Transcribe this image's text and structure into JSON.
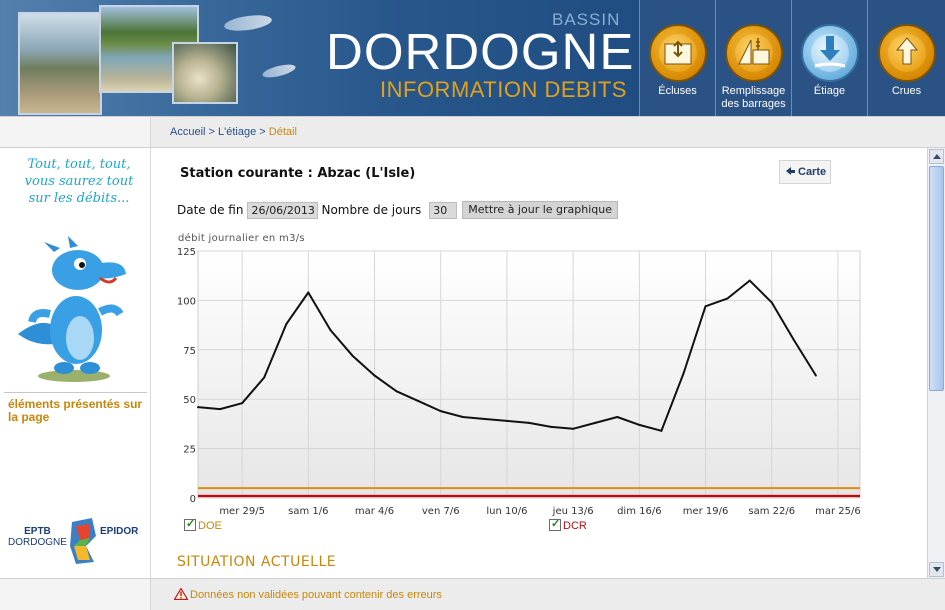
{
  "header": {
    "bassin": "BASSIN",
    "title": "DORDOGNE",
    "subtitle": "INFORMATION DEBITS",
    "nav": [
      {
        "label_line1": "Écluses",
        "label_line2": "",
        "icon": "lock-gauge-icon"
      },
      {
        "label_line1": "Remplissage",
        "label_line2": "des barrages",
        "icon": "reservoir-icon"
      },
      {
        "label_line1": "Étiage",
        "label_line2": "",
        "icon": "low-water-arrow-icon"
      },
      {
        "label_line1": "Crues",
        "label_line2": "",
        "icon": "flood-arrow-icon"
      }
    ]
  },
  "breadcrumb": {
    "home": "Accueil",
    "sep1": " > ",
    "section": "L'étiage",
    "sep2": " > ",
    "current": "Détail"
  },
  "sidebar": {
    "slogan_l1": "Tout, tout, tout,",
    "slogan_l2": "vous saurez tout",
    "slogan_l3": "sur les débits...",
    "elements_link": "éléments présentés sur la page",
    "logo_eptb": "EPTB",
    "logo_dordogne": "DORDOGNE",
    "logo_epidor": "EPIDOR"
  },
  "main": {
    "station_title": "Station courante : Abzac (L'Isle)",
    "carte_label": "Carte",
    "date_label": "Date de fin",
    "date_value": "26/06/2013",
    "days_label": "Nombre de jours",
    "days_value": "30",
    "update_label": "Mettre à jour le graphique",
    "legend_doe": "DOE",
    "legend_dcr": "DCR",
    "situation": "SITUATION ACTUELLE"
  },
  "footer": {
    "warning": "Données non validées pouvant contenir des erreurs"
  },
  "colors": {
    "accent": "#c9860c",
    "dcr": "#b01010",
    "doe_line": "#e08a1a",
    "header_blue": "#2c5788",
    "nav_gold": "#e9a015"
  },
  "chart_data": {
    "type": "line",
    "title": "",
    "ylabel": "débit journalier en m3/s",
    "xlabel": "",
    "ylim": [
      0,
      125
    ],
    "yticks": [
      0,
      25,
      50,
      75,
      100,
      125
    ],
    "x_start": "2013-05-27",
    "xtick_labels": [
      {
        "day": 2,
        "label": "mer 29/5"
      },
      {
        "day": 5,
        "label": "sam 1/6"
      },
      {
        "day": 8,
        "label": "mar 4/6"
      },
      {
        "day": 11,
        "label": "ven 7/6"
      },
      {
        "day": 14,
        "label": "lun 10/6"
      },
      {
        "day": 17,
        "label": "jeu 13/6"
      },
      {
        "day": 20,
        "label": "dim 16/6"
      },
      {
        "day": 23,
        "label": "mer 19/6"
      },
      {
        "day": 26,
        "label": "sam 22/6"
      },
      {
        "day": 29,
        "label": "mar 25/6"
      }
    ],
    "xlim": [
      0,
      30
    ],
    "grid": true,
    "series": [
      {
        "name": "débit journalier",
        "color": "#111111",
        "x": [
          0,
          1,
          2,
          3,
          4,
          5,
          6,
          7,
          8,
          9,
          10,
          11,
          12,
          13,
          14,
          15,
          16,
          17,
          18,
          19,
          20,
          21,
          22,
          23,
          24,
          25,
          26,
          27,
          28
        ],
        "values": [
          46,
          45,
          48,
          61,
          88,
          104,
          85,
          72,
          62,
          54,
          49,
          44,
          41,
          40,
          39,
          38,
          36,
          35,
          38,
          41,
          37,
          34,
          63,
          97,
          101,
          110,
          99,
          80,
          62
        ]
      },
      {
        "name": "DOE",
        "color": "#e08a1a",
        "values": [
          5
        ]
      },
      {
        "name": "DCR",
        "color": "#b01010",
        "values": [
          1
        ]
      }
    ]
  }
}
